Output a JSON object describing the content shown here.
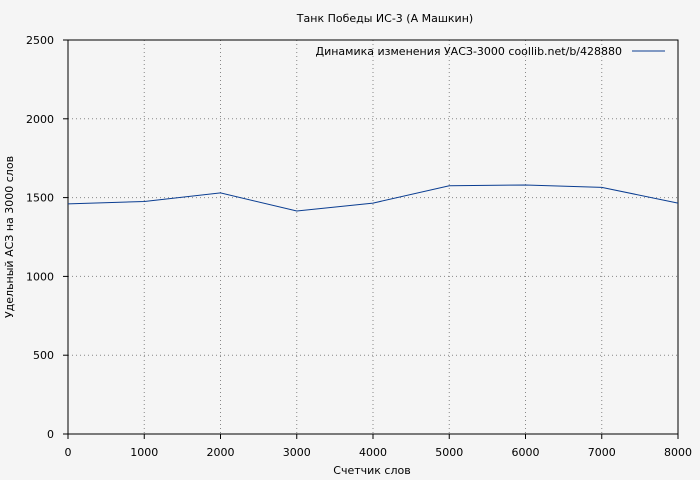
{
  "chart_data": {
    "type": "line",
    "title": "Танк Победы ИС-3 (А Машкин)",
    "xlabel": "Счетчик слов",
    "ylabel": "Удельный АСЗ на 3000 слов",
    "xlim": [
      0,
      8000
    ],
    "ylim": [
      0,
      2500
    ],
    "xticks": [
      0,
      1000,
      2000,
      3000,
      4000,
      5000,
      6000,
      7000,
      8000
    ],
    "yticks": [
      0,
      500,
      1000,
      1500,
      2000,
      2500
    ],
    "grid": true,
    "legend_position": "top-right",
    "series": [
      {
        "name": "Динамика изменения УАСЗ-3000  coollib.net/b/428880",
        "color": "#0a3d91",
        "x": [
          0,
          1000,
          2000,
          3000,
          4000,
          5000,
          6000,
          7000,
          8000
        ],
        "y": [
          1460,
          1475,
          1530,
          1415,
          1465,
          1575,
          1580,
          1565,
          1465
        ]
      }
    ]
  }
}
